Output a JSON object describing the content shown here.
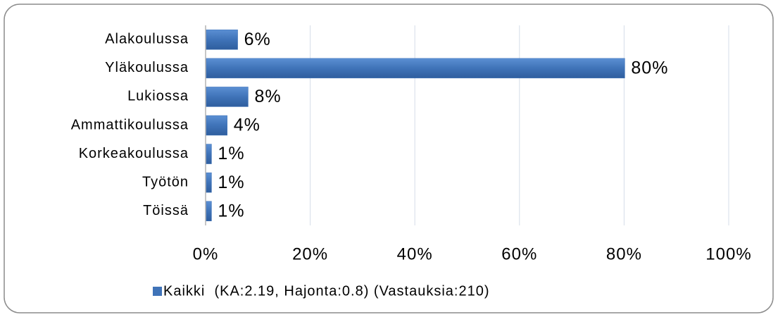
{
  "chart_data": {
    "type": "bar",
    "orientation": "horizontal",
    "categories": [
      "Alakoulussa",
      "Yläkoulussa",
      "Lukiossa",
      "Ammattikoulussa",
      "Korkeakoulussa",
      "Työtön",
      "Töissä"
    ],
    "series": [
      {
        "name": "Kaikki  (KA:2.19, Hajonta:0.8) (Vastauksia:210)",
        "color": "#3f73b8",
        "values": [
          6,
          80,
          8,
          4,
          1,
          1,
          1
        ],
        "value_labels": [
          "6%",
          "80%",
          "8%",
          "4%",
          "1%",
          "1%",
          "1%"
        ]
      }
    ],
    "xlim": [
      0,
      100
    ],
    "xticks": [
      {
        "value": 0,
        "label": "0%"
      },
      {
        "value": 20,
        "label": "20%"
      },
      {
        "value": 40,
        "label": "40%"
      },
      {
        "value": 60,
        "label": "60%"
      },
      {
        "value": 80,
        "label": "80%"
      },
      {
        "value": 100,
        "label": "100%"
      }
    ],
    "grid": true,
    "legend": "bottom"
  }
}
